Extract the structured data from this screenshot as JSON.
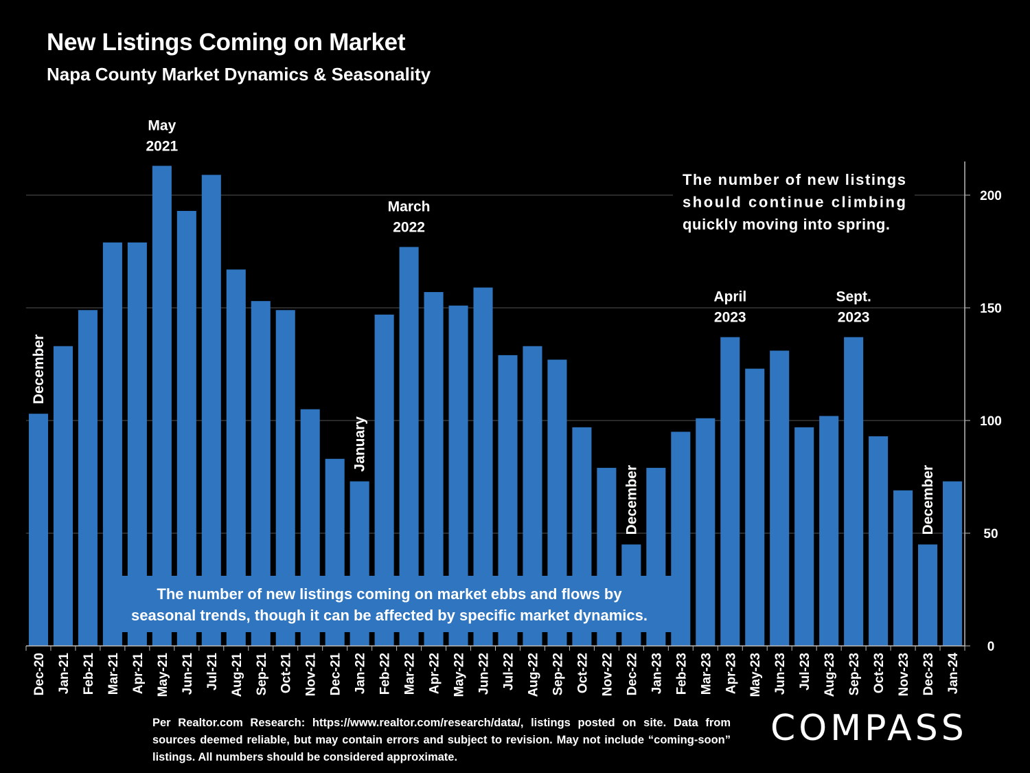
{
  "title": "New Listings Coming on Market",
  "subtitle": "Napa County Market Dynamics & Seasonality",
  "footnote": "Per Realtor.com Research:  https://www.realtor.com/research/data/, listings posted on site. Data from sources deemed reliable, but may contain errors and subject to revision. May not include “coming-soon” listings. All numbers should be considered approximate.",
  "logo": "COMPASS",
  "colors": {
    "bar": "#2f75c0",
    "background": "#000000",
    "text": "#ffffff",
    "grid": "#555555"
  },
  "chart_data": {
    "type": "bar",
    "categories": [
      "Dec-20",
      "Jan-21",
      "Feb-21",
      "Mar-21",
      "Apr-21",
      "May-21",
      "Jun-21",
      "Jul-21",
      "Aug-21",
      "Sep-21",
      "Oct-21",
      "Nov-21",
      "Dec-21",
      "Jan-22",
      "Feb-22",
      "Mar-22",
      "Apr-22",
      "May-22",
      "Jun-22",
      "Jul-22",
      "Aug-22",
      "Sep-22",
      "Oct-22",
      "Nov-22",
      "Dec-22",
      "Jan-23",
      "Feb-23",
      "Mar-23",
      "Apr-23",
      "May-23",
      "Jun-23",
      "Jul-23",
      "Aug-23",
      "Sep-23",
      "Oct-23",
      "Nov-23",
      "Dec-23",
      "Jan-24"
    ],
    "values": [
      103,
      133,
      149,
      179,
      179,
      213,
      193,
      209,
      167,
      153,
      149,
      105,
      83,
      73,
      147,
      177,
      157,
      151,
      159,
      129,
      133,
      127,
      97,
      79,
      45,
      79,
      95,
      101,
      137,
      123,
      131,
      97,
      102,
      137,
      93,
      69,
      45,
      73
    ],
    "ylim": [
      0,
      215
    ],
    "yticks": [
      "0",
      "50",
      "100",
      "150",
      "200"
    ],
    "y_axis_side": "right",
    "grid": true,
    "annotations": [
      {
        "index": 0,
        "lines": [
          "December"
        ],
        "rotated": true
      },
      {
        "index": 5,
        "lines": [
          "May",
          "2021"
        ],
        "rotated": false
      },
      {
        "index": 13,
        "lines": [
          "January"
        ],
        "rotated": true
      },
      {
        "index": 15,
        "lines": [
          "March",
          "2022"
        ],
        "rotated": false
      },
      {
        "index": 24,
        "lines": [
          "December"
        ],
        "rotated": true
      },
      {
        "index": 28,
        "lines": [
          "April",
          "2023"
        ],
        "rotated": false
      },
      {
        "index": 33,
        "lines": [
          "Sept.",
          "2023"
        ],
        "rotated": false
      },
      {
        "index": 36,
        "lines": [
          "December"
        ],
        "rotated": true
      }
    ],
    "callout_top": [
      "The number of new listings",
      "should continue climbing",
      "quickly moving into spring."
    ],
    "callout_bottom": [
      "The number of new listings coming on market ebbs and flows by",
      "seasonal trends, though it can be affected by specific market dynamics."
    ]
  }
}
